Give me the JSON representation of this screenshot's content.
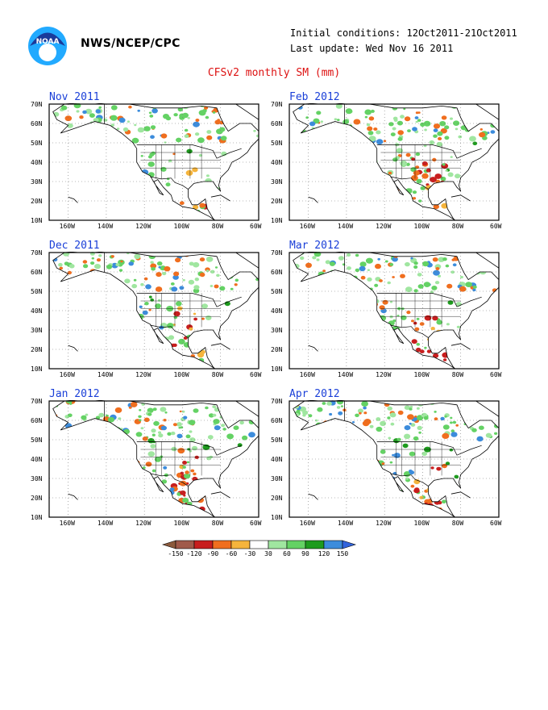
{
  "header": {
    "agency": "NWS/NCEP/CPC",
    "logo_text": "NOAA",
    "initial_conditions": "Initial conditions: 12Oct2011-21Oct2011",
    "last_update": "Last update: Wed Nov 16 2011",
    "title": "CFSv2 monthly SM (mm)"
  },
  "map_axes": {
    "lat_labels": [
      "70N",
      "60N",
      "50N",
      "40N",
      "30N",
      "20N",
      "10N"
    ],
    "lon_labels": [
      "160W",
      "140W",
      "120W",
      "100W",
      "80W",
      "60W"
    ]
  },
  "panels": [
    {
      "id": "nov-2011",
      "title": "Nov 2011",
      "dryness": 0.25
    },
    {
      "id": "feb-2012",
      "title": "Feb 2012",
      "dryness": 0.7
    },
    {
      "id": "dec-2011",
      "title": "Dec 2011",
      "dryness": 0.45
    },
    {
      "id": "mar-2012",
      "title": "Mar 2012",
      "dryness": 0.6
    },
    {
      "id": "jan-2012",
      "title": "Jan 2012",
      "dryness": 0.55
    },
    {
      "id": "apr-2012",
      "title": "Apr 2012",
      "dryness": 0.75
    }
  ],
  "legend": {
    "labels": [
      "-150",
      "-120",
      "-90",
      "-60",
      "-30",
      "30",
      "60",
      "90",
      "120",
      "150"
    ],
    "colors": [
      "#8c5a3c",
      "#a05a4a",
      "#c81e1e",
      "#f06e1e",
      "#f5b43c",
      "#ffffff",
      "#a0e6a0",
      "#64d264",
      "#1e9b1e",
      "#3c8cdc",
      "#3264dc"
    ]
  }
}
